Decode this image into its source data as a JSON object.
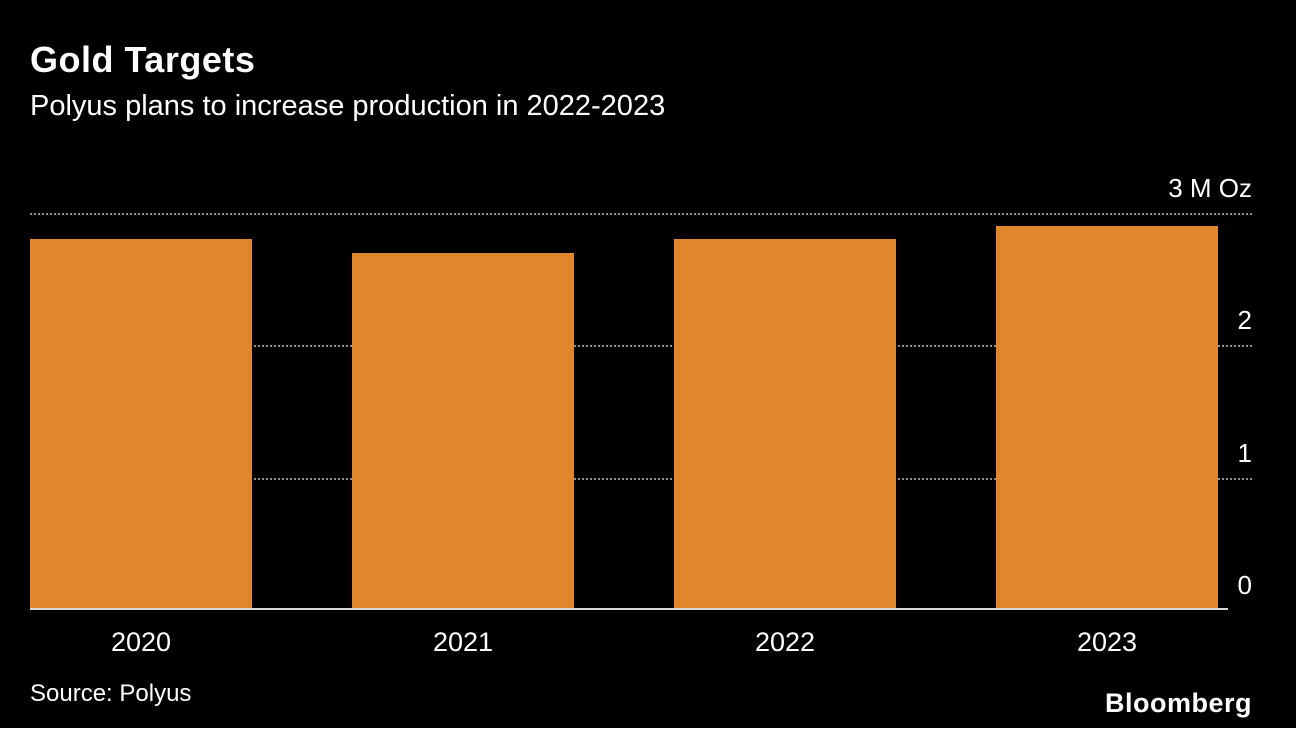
{
  "header": {
    "title": "Gold Targets",
    "subtitle": "Polyus plans to increase production in 2022-2023"
  },
  "chart_data": {
    "type": "bar",
    "title": "Gold Targets",
    "subtitle": "Polyus plans to increase production in 2022-2023",
    "categories": [
      "2020",
      "2021",
      "2022",
      "2023"
    ],
    "values": [
      2.8,
      2.7,
      2.8,
      2.9
    ],
    "xlabel": "",
    "ylabel": "M Oz",
    "unit": "M Oz",
    "ylim": [
      0,
      3
    ],
    "yticks": [
      {
        "value": 3,
        "label": "3 M Oz"
      },
      {
        "value": 2,
        "label": "2"
      },
      {
        "value": 1,
        "label": "1"
      },
      {
        "value": 0,
        "label": "0"
      }
    ],
    "grid": "dotted-horizontal",
    "legend": "none",
    "bar_color": "#E0862C",
    "background_color": "#000000",
    "text_color": "#FFFFFF",
    "gridline_color": "#8F8F8F"
  },
  "footer": {
    "source": "Source: Polyus",
    "brand": "Bloomberg"
  }
}
